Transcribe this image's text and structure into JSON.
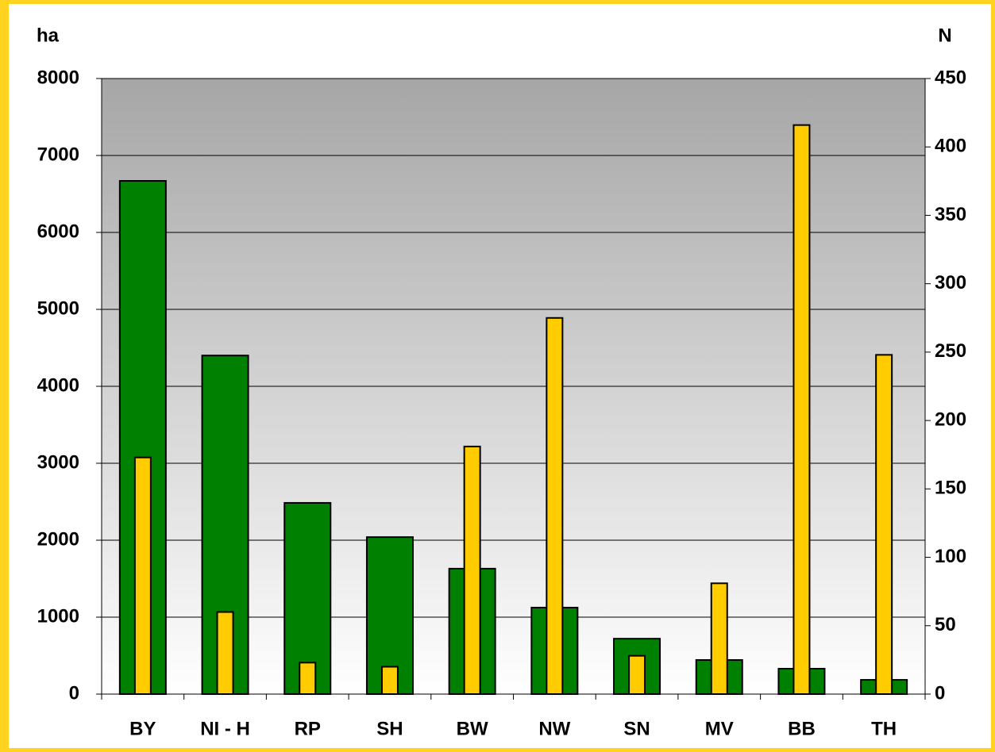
{
  "chart_data": {
    "type": "bar",
    "y_label": "ha",
    "y2_label": "N",
    "categories": [
      "BY",
      "NI - H",
      "RP",
      "SH",
      "BW",
      "NW",
      "SN",
      "MV",
      "BB",
      "TH"
    ],
    "series": [
      {
        "color": "#008000",
        "values": [
          6670,
          4400,
          2485,
          2040,
          1630,
          1124,
          720,
          443,
          330,
          185
        ]
      },
      {
        "color": "#ffcc00",
        "axis": "y2",
        "values": [
          173,
          60,
          23,
          20,
          181,
          275,
          28,
          81,
          416,
          248
        ]
      }
    ],
    "ylim": [
      0,
      8000
    ],
    "yticks": [
      0,
      1000,
      2000,
      3000,
      4000,
      5000,
      6000,
      7000,
      8000
    ],
    "y2lim": [
      0,
      450
    ],
    "y2ticks": [
      0,
      50,
      100,
      150,
      200,
      250,
      300,
      350,
      400,
      450
    ],
    "grid": true
  }
}
